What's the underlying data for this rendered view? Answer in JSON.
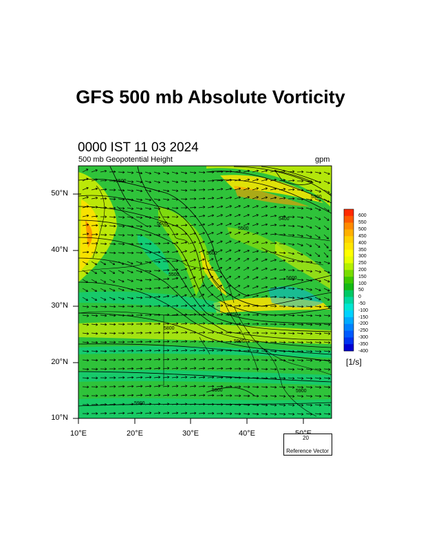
{
  "title": "GFS 500 mb Absolute Vorticity",
  "valid_time": "0000 IST 11 03 2024",
  "field_label": "500 mb Geopotential Height",
  "field_units": "gpm",
  "lat_ticks": [
    "50°N",
    "40°N",
    "30°N",
    "20°N",
    "10°N"
  ],
  "lon_ticks": [
    "10°E",
    "20°E",
    "30°E",
    "40°E",
    "50°E"
  ],
  "colorbar": {
    "units": "[1/s]",
    "labels": [
      "600",
      "550",
      "500",
      "450",
      "400",
      "350",
      "300",
      "250",
      "200",
      "150",
      "100",
      "50",
      "0",
      "-50",
      "-100",
      "-150",
      "-200",
      "-250",
      "-300",
      "-350",
      "-400"
    ],
    "colors": [
      "#ff2a00",
      "#ff5a00",
      "#ff8a00",
      "#ffb000",
      "#ffd200",
      "#ffe600",
      "#ffff00",
      "#e6ff00",
      "#b4f000",
      "#78dc00",
      "#3cc800",
      "#14b914",
      "#00c864",
      "#00d7a0",
      "#00e6d2",
      "#00d2ff",
      "#00aaff",
      "#0082ff",
      "#005aff",
      "#0032f0",
      "#0000d2"
    ]
  },
  "contour_labels": [
    "5500",
    "5300",
    "5600",
    "5500",
    "5400",
    "5600",
    "5500",
    "5600",
    "5700",
    "5800",
    "5900",
    "5900",
    "5900",
    "5900"
  ],
  "reference_vector": {
    "speed": "20",
    "label": "Reference Vector"
  }
}
